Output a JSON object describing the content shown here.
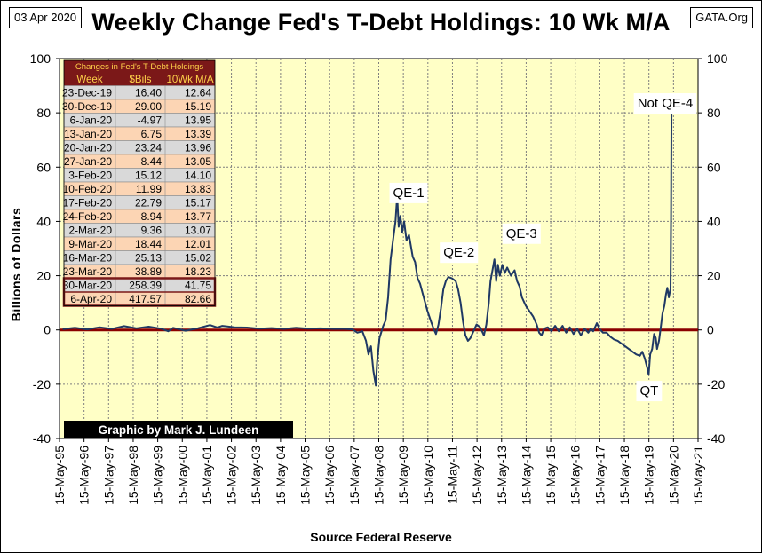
{
  "date_label": "03 Apr 2020",
  "source_label": "GATA.Org",
  "chart_data": {
    "type": "line",
    "title": "Weekly Change Fed's T-Debt Holdings: 10 Wk M/A",
    "ylabel": "Billions  of  Dollars",
    "xlabel": "Source Federal Reserve",
    "ylim": [
      -40,
      100
    ],
    "yticks": [
      -40,
      -20,
      0,
      20,
      40,
      60,
      80,
      100
    ],
    "xlim": [
      1995.37,
      2021.37
    ],
    "xtick_labels": [
      "15-May-95",
      "15-May-96",
      "15-May-97",
      "15-May-98",
      "15-May-99",
      "15-May-00",
      "15-May-01",
      "15-May-02",
      "15-May-03",
      "15-May-04",
      "15-May-05",
      "15-May-06",
      "15-May-07",
      "15-May-08",
      "15-May-09",
      "15-May-10",
      "15-May-11",
      "15-May-12",
      "15-May-13",
      "15-May-14",
      "15-May-15",
      "15-May-16",
      "15-May-17",
      "15-May-18",
      "15-May-19",
      "15-May-20",
      "15-May-21"
    ],
    "grid": true,
    "series": [
      {
        "values_points": [
          [
            1995.5,
            0.3
          ],
          [
            1996.0,
            0.8
          ],
          [
            1996.5,
            0.2
          ],
          [
            1997.0,
            1.0
          ],
          [
            1997.5,
            0.4
          ],
          [
            1998.0,
            1.4
          ],
          [
            1998.5,
            0.6
          ],
          [
            1999.0,
            1.2
          ],
          [
            1999.5,
            0.5
          ],
          [
            1999.8,
            -0.5
          ],
          [
            2000.0,
            0.8
          ],
          [
            2000.5,
            -0.3
          ],
          [
            2001.0,
            0.6
          ],
          [
            2001.5,
            1.8
          ],
          [
            2001.8,
            0.9
          ],
          [
            2002.0,
            1.5
          ],
          [
            2002.5,
            1.0
          ],
          [
            2003.0,
            0.9
          ],
          [
            2003.5,
            0.5
          ],
          [
            2004.0,
            0.7
          ],
          [
            2004.5,
            0.4
          ],
          [
            2005.0,
            0.8
          ],
          [
            2005.5,
            0.5
          ],
          [
            2006.0,
            0.6
          ],
          [
            2006.5,
            0.4
          ],
          [
            2007.0,
            0.4
          ],
          [
            2007.3,
            0.2
          ],
          [
            2007.5,
            -1.0
          ],
          [
            2007.7,
            -0.5
          ],
          [
            2007.85,
            -4.0
          ],
          [
            2007.95,
            -9.0
          ],
          [
            2008.05,
            -6.0
          ],
          [
            2008.15,
            -15.0
          ],
          [
            2008.25,
            -20.5
          ],
          [
            2008.3,
            -12.0
          ],
          [
            2008.4,
            -3.0
          ],
          [
            2008.55,
            1.5
          ],
          [
            2008.65,
            3.5
          ],
          [
            2008.75,
            12.0
          ],
          [
            2008.85,
            26.0
          ],
          [
            2008.95,
            33.0
          ],
          [
            2009.05,
            40.0
          ],
          [
            2009.12,
            49.5
          ],
          [
            2009.18,
            38.0
          ],
          [
            2009.25,
            42.0
          ],
          [
            2009.32,
            36.0
          ],
          [
            2009.4,
            40.0
          ],
          [
            2009.5,
            33.0
          ],
          [
            2009.6,
            35.0
          ],
          [
            2009.75,
            27.0
          ],
          [
            2009.85,
            25.0
          ],
          [
            2009.95,
            19.0
          ],
          [
            2010.05,
            17.0
          ],
          [
            2010.2,
            12.0
          ],
          [
            2010.35,
            7.0
          ],
          [
            2010.5,
            3.0
          ],
          [
            2010.6,
            0.5
          ],
          [
            2010.7,
            -1.5
          ],
          [
            2010.8,
            2.0
          ],
          [
            2010.9,
            8.0
          ],
          [
            2011.0,
            15.0
          ],
          [
            2011.1,
            18.0
          ],
          [
            2011.2,
            19.5
          ],
          [
            2011.35,
            19.0
          ],
          [
            2011.5,
            18.0
          ],
          [
            2011.6,
            15.0
          ],
          [
            2011.7,
            10.0
          ],
          [
            2011.8,
            3.0
          ],
          [
            2011.9,
            -2.0
          ],
          [
            2012.0,
            -4.0
          ],
          [
            2012.1,
            -3.0
          ],
          [
            2012.2,
            -1.0
          ],
          [
            2012.35,
            2.0
          ],
          [
            2012.5,
            1.0
          ],
          [
            2012.65,
            -2.0
          ],
          [
            2012.75,
            2.0
          ],
          [
            2012.85,
            10.0
          ],
          [
            2012.92,
            18.0
          ],
          [
            2013.0,
            22.0
          ],
          [
            2013.08,
            26.0
          ],
          [
            2013.15,
            18.0
          ],
          [
            2013.22,
            24.0
          ],
          [
            2013.3,
            20.0
          ],
          [
            2013.4,
            24.0
          ],
          [
            2013.5,
            21.0
          ],
          [
            2013.6,
            23.0
          ],
          [
            2013.75,
            20.0
          ],
          [
            2013.9,
            22.0
          ],
          [
            2014.0,
            18.0
          ],
          [
            2014.1,
            16.0
          ],
          [
            2014.2,
            12.0
          ],
          [
            2014.35,
            9.0
          ],
          [
            2014.5,
            7.0
          ],
          [
            2014.65,
            5.0
          ],
          [
            2014.8,
            2.0
          ],
          [
            2014.9,
            -1.0
          ],
          [
            2015.0,
            -2.0
          ],
          [
            2015.1,
            0.5
          ],
          [
            2015.25,
            1.0
          ],
          [
            2015.4,
            -0.5
          ],
          [
            2015.55,
            1.5
          ],
          [
            2015.7,
            -0.5
          ],
          [
            2015.85,
            1.5
          ],
          [
            2016.0,
            -1.0
          ],
          [
            2016.15,
            1.0
          ],
          [
            2016.3,
            -1.5
          ],
          [
            2016.45,
            0.5
          ],
          [
            2016.6,
            -2.0
          ],
          [
            2016.75,
            0.5
          ],
          [
            2016.9,
            -1.0
          ],
          [
            2017.0,
            0.5
          ],
          [
            2017.1,
            -0.5
          ],
          [
            2017.25,
            2.5
          ],
          [
            2017.35,
            0.5
          ],
          [
            2017.5,
            -1.0
          ],
          [
            2017.65,
            -1.0
          ],
          [
            2017.8,
            -2.5
          ],
          [
            2017.95,
            -3.5
          ],
          [
            2018.1,
            -4.0
          ],
          [
            2018.25,
            -5.0
          ],
          [
            2018.4,
            -6.0
          ],
          [
            2018.55,
            -7.0
          ],
          [
            2018.7,
            -8.0
          ],
          [
            2018.85,
            -9.0
          ],
          [
            2019.0,
            -9.5
          ],
          [
            2019.1,
            -8.0
          ],
          [
            2019.2,
            -10.5
          ],
          [
            2019.3,
            -14.0
          ],
          [
            2019.36,
            -16.5
          ],
          [
            2019.42,
            -9.0
          ],
          [
            2019.5,
            -7.0
          ],
          [
            2019.58,
            -1.5
          ],
          [
            2019.65,
            -3.0
          ],
          [
            2019.7,
            -7.0
          ],
          [
            2019.78,
            -4.0
          ],
          [
            2019.85,
            1.0
          ],
          [
            2019.92,
            6.0
          ],
          [
            2020.0,
            9.0
          ],
          [
            2020.06,
            13.0
          ],
          [
            2020.12,
            15.5
          ],
          [
            2020.18,
            12.0
          ],
          [
            2020.22,
            14.0
          ],
          [
            2020.25,
            15.0
          ],
          [
            2020.27,
            41.75
          ],
          [
            2020.29,
            82.66
          ]
        ]
      }
    ],
    "annotations": [
      {
        "text": "QE-1",
        "x": 2008.95,
        "y": 49
      },
      {
        "text": "QE-2",
        "x": 2011.0,
        "y": 27
      },
      {
        "text": "QE-3",
        "x": 2013.55,
        "y": 34
      },
      {
        "text": "Not QE-4",
        "x": 2018.9,
        "y": 82
      },
      {
        "text": "QT",
        "x": 2019.0,
        "y": -24
      }
    ]
  },
  "data_table": {
    "title": "Changes in Fed's T-Debt Holdings",
    "headers": [
      "Week",
      "$Bils",
      "10Wk M/A"
    ],
    "rows": [
      [
        "23-Dec-19",
        "16.40",
        "12.64"
      ],
      [
        "30-Dec-19",
        "29.00",
        "15.19"
      ],
      [
        "6-Jan-20",
        "-4.97",
        "13.95"
      ],
      [
        "13-Jan-20",
        "6.75",
        "13.39"
      ],
      [
        "20-Jan-20",
        "23.24",
        "13.96"
      ],
      [
        "27-Jan-20",
        "8.44",
        "13.05"
      ],
      [
        "3-Feb-20",
        "15.12",
        "14.10"
      ],
      [
        "10-Feb-20",
        "11.99",
        "13.83"
      ],
      [
        "17-Feb-20",
        "22.79",
        "15.17"
      ],
      [
        "24-Feb-20",
        "8.94",
        "13.77"
      ],
      [
        "2-Mar-20",
        "9.36",
        "13.07"
      ],
      [
        "9-Mar-20",
        "18.44",
        "12.01"
      ],
      [
        "16-Mar-20",
        "25.13",
        "15.02"
      ],
      [
        "23-Mar-20",
        "38.89",
        "18.23"
      ],
      [
        "30-Mar-20",
        "258.39",
        "41.75"
      ],
      [
        "6-Apr-20",
        "417.57",
        "82.66"
      ]
    ],
    "highlight_rows": [
      14,
      15
    ]
  },
  "credit_label": "Graphic by Mark J. Lundeen",
  "colors": {
    "plot_bg": "#ffffc6",
    "grid": "#7f7f7f",
    "line": "#1f3864",
    "zero_line": "#8b0000",
    "table_header": "#7b1818",
    "table_title_text": "#ffd24a",
    "row_gray": "#d9d9d9",
    "row_peach": "#fcd5b4",
    "credit_bg": "#000000"
  }
}
